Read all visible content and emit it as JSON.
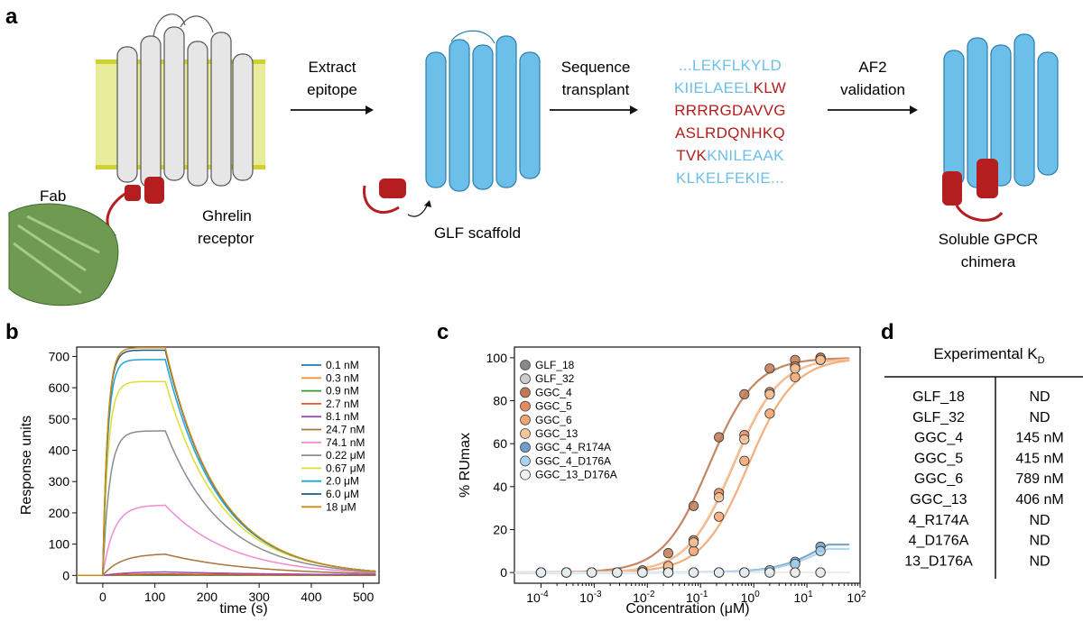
{
  "panel_labels": {
    "a": "a",
    "b": "b",
    "c": "c",
    "d": "d"
  },
  "panel_a": {
    "fab_label": "Fab",
    "receptor_label": [
      "Ghrelin",
      "receptor"
    ],
    "steps": [
      {
        "lines": [
          "Extract",
          "epitope"
        ]
      },
      {
        "lines": [
          "Sequence",
          "transplant"
        ]
      },
      {
        "lines": [
          "AF2",
          "validation"
        ]
      }
    ],
    "scaffold_label": "GLF scaffold",
    "result_label": [
      "Soluble GPCR",
      "chimera"
    ],
    "sequence": [
      [
        {
          "t": "...LEKFLKYLD",
          "c": "blue"
        }
      ],
      [
        {
          "t": "KIIELAEEL",
          "c": "blue"
        },
        {
          "t": "KLW",
          "c": "red"
        }
      ],
      [
        {
          "t": "RRRRGDAVVG",
          "c": "red"
        }
      ],
      [
        {
          "t": "ASLRDQNHKQ",
          "c": "red"
        }
      ],
      [
        {
          "t": "TVK",
          "c": "red"
        },
        {
          "t": "KNILEAAK",
          "c": "blue"
        }
      ],
      [
        {
          "t": "KLKELFEKIE...",
          "c": "blue"
        }
      ]
    ],
    "colors": {
      "blue": "#6cbfe8",
      "red": "#b41e1e",
      "membrane": "#e9ec9a",
      "membrane_edge": "#cfd331",
      "fab": "#6f9a52",
      "receptor": "#e6e6e6"
    }
  },
  "chart_data": [
    {
      "id": "b",
      "type": "line",
      "title": "",
      "xlabel": "time (s)",
      "ylabel": "Response units",
      "xlim": [
        -50,
        530
      ],
      "ylim": [
        -25,
        730
      ],
      "xticks": [
        0,
        100,
        200,
        300,
        400,
        500
      ],
      "yticks": [
        0,
        100,
        200,
        300,
        400,
        500,
        600,
        700
      ],
      "association_start_s": 0,
      "dissociation_start_s": 120,
      "series": [
        {
          "name": "0.1 nM",
          "color": "#1f77b4",
          "plateau": 0,
          "end": 0
        },
        {
          "name": "0.3 nM",
          "color": "#e89a2e",
          "plateau": 1,
          "end": 0
        },
        {
          "name": "0.9 nM",
          "color": "#2ca02c",
          "plateau": 2,
          "end": 0
        },
        {
          "name": "2.7 nM",
          "color": "#e8542e",
          "plateau": 5,
          "end": 1
        },
        {
          "name": "8.1 nM",
          "color": "#9a4fb5",
          "plateau": 12,
          "end": 2
        },
        {
          "name": "24.7 nM",
          "color": "#a8743c",
          "plateau": 70,
          "end": 5
        },
        {
          "name": "74.1 nM",
          "color": "#f08bd6",
          "plateau": 225,
          "end": 8
        },
        {
          "name": "0.22 μM",
          "color": "#8c8c8c",
          "plateau": 462,
          "end": 10
        },
        {
          "name": "0.67 μM",
          "color": "#dede33",
          "plateau": 620,
          "end": 12
        },
        {
          "name": "2.0 μM",
          "color": "#1aa8d6",
          "plateau": 690,
          "end": 12
        },
        {
          "name": "6.0 μM",
          "color": "#1b5a8c",
          "plateau": 720,
          "end": 12
        },
        {
          "name": "18 μM",
          "color": "#d38a15",
          "plateau": 728,
          "end": 12
        }
      ]
    },
    {
      "id": "c",
      "type": "scatter",
      "title": "",
      "xlabel": "Concentration (μM)",
      "ylabel": "% RUmax",
      "xscale": "log",
      "xlim_log10": [
        -4.5,
        2
      ],
      "ylim": [
        -5,
        105
      ],
      "xtick_exponents": [
        -4,
        -3,
        -2,
        -1,
        0,
        1,
        2
      ],
      "yticks": [
        0,
        20,
        40,
        60,
        80,
        100
      ],
      "x_points_uM": [
        0.0001,
        0.0003,
        0.0009,
        0.0027,
        0.0081,
        0.0247,
        0.0741,
        0.222,
        0.667,
        2.0,
        6.0,
        18.0
      ],
      "series": [
        {
          "name": "GLF_18",
          "color": "#888888",
          "kd_uM": null,
          "max": 0,
          "y": [
            0,
            0,
            0,
            0,
            0,
            0,
            0,
            0,
            0,
            0,
            0,
            0
          ]
        },
        {
          "name": "GLF_32",
          "color": "#cccccc",
          "kd_uM": null,
          "max": 0,
          "y": [
            0,
            0,
            0,
            0,
            0,
            0,
            0,
            0,
            0,
            0,
            0,
            0
          ]
        },
        {
          "name": "GGC_4",
          "color": "#c07852",
          "kd_uM": 0.145,
          "max": 100,
          "y": [
            0,
            0,
            0,
            0,
            1,
            9,
            31,
            63,
            83,
            95,
            99,
            100
          ]
        },
        {
          "name": "GGC_5",
          "color": "#e88a5c",
          "kd_uM": 0.415,
          "max": 100,
          "y": [
            0,
            0,
            0,
            0,
            0,
            3,
            15,
            37,
            64,
            84,
            96,
            100
          ]
        },
        {
          "name": "GGC_6",
          "color": "#f2a56e",
          "kd_uM": 0.789,
          "max": 100,
          "y": [
            0,
            0,
            0,
            0,
            0,
            2,
            10,
            26,
            52,
            74,
            91,
            99
          ]
        },
        {
          "name": "GGC_13",
          "color": "#f7c69a",
          "kd_uM": 0.406,
          "max": 100,
          "y": [
            0,
            0,
            0,
            0,
            0,
            3,
            14,
            35,
            62,
            83,
            95,
            99
          ]
        },
        {
          "name": "GGC_4_R174A",
          "color": "#6e9ecb",
          "kd_uM": null,
          "max": 13,
          "y": [
            0,
            0,
            0,
            0,
            0,
            0,
            0,
            0,
            0,
            1,
            5,
            12
          ]
        },
        {
          "name": "GGC_4_D176A",
          "color": "#a9d3ec",
          "kd_uM": null,
          "max": 11,
          "y": [
            0,
            0,
            0,
            0,
            0,
            0,
            0,
            0,
            0,
            1,
            4,
            10
          ]
        },
        {
          "name": "GGC_13_D176A",
          "color": "#f2f2f2",
          "kd_uM": null,
          "max": 0,
          "y": [
            0,
            0,
            0,
            0,
            0,
            0,
            0,
            0,
            0,
            0,
            0,
            0
          ]
        }
      ]
    },
    {
      "id": "d",
      "type": "table",
      "title": "Experimental K",
      "title_sub": "D",
      "rows": [
        [
          "GLF_18",
          "ND"
        ],
        [
          "GLF_32",
          "ND"
        ],
        [
          "GGC_4",
          "145 nM"
        ],
        [
          "GGC_5",
          "415 nM"
        ],
        [
          "GGC_6",
          "789 nM"
        ],
        [
          "GGC_13",
          "406 nM"
        ],
        [
          "4_R174A",
          "ND"
        ],
        [
          "4_D176A",
          "ND"
        ],
        [
          "13_D176A",
          "ND"
        ]
      ]
    }
  ]
}
